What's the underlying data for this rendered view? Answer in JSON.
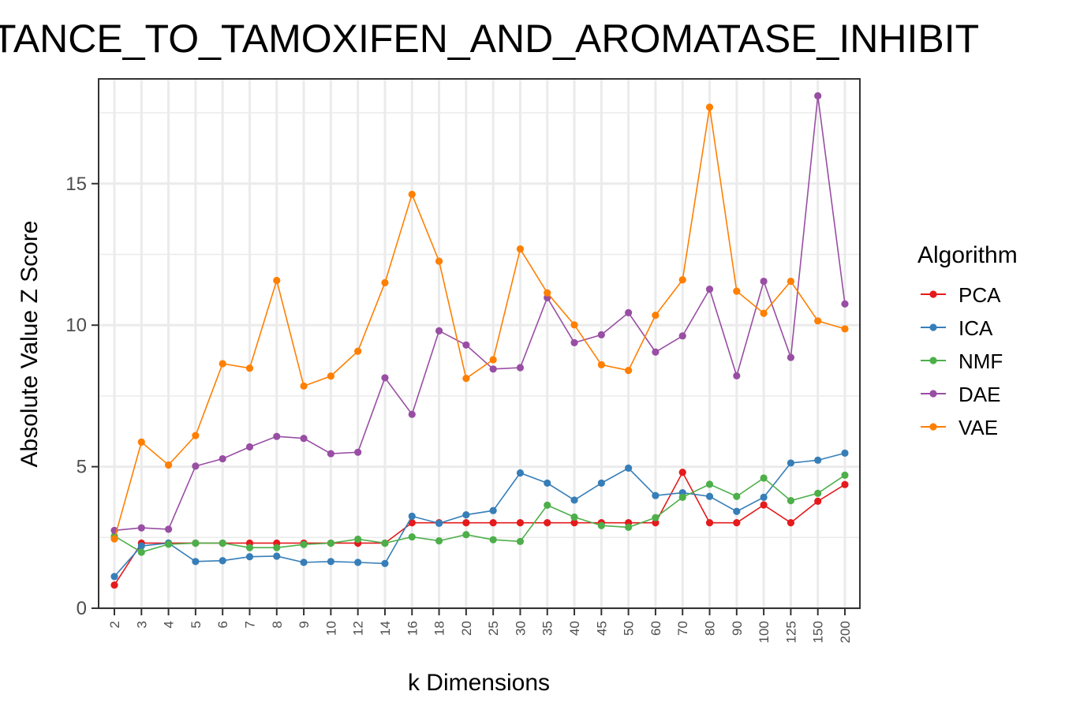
{
  "chart_data": {
    "type": "line",
    "title": "TANCE_TO_TAMOXIFEN_AND_AROMATASE_INHIBIT",
    "xlabel": "k Dimensions",
    "ylabel": "Absolute Value Z Score",
    "categories": [
      "2",
      "3",
      "4",
      "5",
      "6",
      "7",
      "8",
      "9",
      "10",
      "12",
      "14",
      "16",
      "18",
      "20",
      "25",
      "30",
      "35",
      "40",
      "45",
      "50",
      "60",
      "70",
      "80",
      "90",
      "100",
      "125",
      "150",
      "200"
    ],
    "ylim": [
      0,
      18.7
    ],
    "yticks": [
      0,
      5,
      10,
      15
    ],
    "ytick_labels": [
      "0",
      "5",
      "10",
      "15"
    ],
    "grid": true,
    "legend": {
      "title": "Algorithm",
      "position": "right"
    },
    "series": [
      {
        "name": "PCA",
        "color": "#E41A1C",
        "values": [
          0.82,
          2.3,
          2.3,
          2.3,
          2.3,
          2.3,
          2.3,
          2.3,
          2.3,
          2.3,
          2.3,
          3.02,
          3.02,
          3.02,
          3.02,
          3.02,
          3.02,
          3.02,
          3.02,
          3.02,
          3.02,
          4.8,
          3.02,
          3.02,
          3.65,
          3.02,
          3.78,
          4.37
        ]
      },
      {
        "name": "ICA",
        "color": "#377EB8",
        "values": [
          1.12,
          2.2,
          2.3,
          1.65,
          1.68,
          1.82,
          1.84,
          1.62,
          1.65,
          1.62,
          1.58,
          3.25,
          3.0,
          3.3,
          3.45,
          4.78,
          4.42,
          3.82,
          4.42,
          4.95,
          3.98,
          4.08,
          3.95,
          3.42,
          3.92,
          5.13,
          5.23,
          5.48
        ]
      },
      {
        "name": "NMF",
        "color": "#4DAF4A",
        "values": [
          2.55,
          1.98,
          2.26,
          2.3,
          2.3,
          2.14,
          2.14,
          2.25,
          2.3,
          2.44,
          2.3,
          2.52,
          2.38,
          2.6,
          2.42,
          2.36,
          3.64,
          3.22,
          2.92,
          2.86,
          3.2,
          3.92,
          4.38,
          3.95,
          4.6,
          3.8,
          4.06,
          4.7
        ]
      },
      {
        "name": "DAE",
        "color": "#984EA3",
        "values": [
          2.75,
          2.84,
          2.79,
          5.02,
          5.28,
          5.7,
          6.07,
          6.0,
          5.46,
          5.51,
          8.14,
          6.85,
          9.8,
          9.3,
          8.45,
          8.5,
          10.97,
          9.38,
          9.66,
          10.44,
          9.05,
          9.62,
          11.27,
          8.21,
          11.55,
          8.86,
          18.1,
          10.75
        ]
      },
      {
        "name": "VAE",
        "color": "#FF7F00",
        "values": [
          2.45,
          5.87,
          5.06,
          6.1,
          8.64,
          8.48,
          11.58,
          7.85,
          8.2,
          9.08,
          11.5,
          14.62,
          12.26,
          8.12,
          8.78,
          12.69,
          11.14,
          10.01,
          8.6,
          8.4,
          10.35,
          11.6,
          17.7,
          11.2,
          10.42,
          11.55,
          10.15,
          9.87
        ]
      }
    ]
  }
}
